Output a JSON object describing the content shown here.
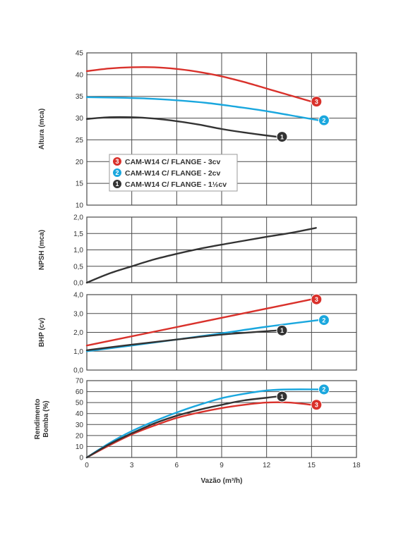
{
  "colors": {
    "series_3": "#d9312b",
    "series_2": "#1aa7de",
    "series_1": "#333333",
    "grid": "#4a4a4a",
    "panel_border": "#4a4a4a"
  },
  "chart_data": [
    {
      "type": "line",
      "ylabel": "Altura (mca)",
      "ylim": [
        10,
        45
      ],
      "yticks": [
        "10",
        "15",
        "20",
        "25",
        "30",
        "35",
        "40",
        "45"
      ],
      "xlim": [
        0,
        18
      ],
      "grid": true,
      "legend": {
        "placement": "center-left",
        "entries": [
          {
            "badge": "3",
            "label": "CAM-W14 C/ FLANGE - 3cv",
            "color_key": "series_3"
          },
          {
            "badge": "2",
            "label": "CAM-W14 C/ FLANGE - 2cv",
            "color_key": "series_2"
          },
          {
            "badge": "1",
            "label": "CAM-W14 C/ FLANGE - 1½cv",
            "color_key": "series_1"
          }
        ]
      },
      "series": [
        {
          "badge": "3",
          "color_key": "series_3",
          "x": [
            0,
            1.5,
            3,
            4.5,
            6,
            7.5,
            9,
            10.5,
            12,
            13.5,
            15
          ],
          "y": [
            40.8,
            41.4,
            41.7,
            41.7,
            41.3,
            40.6,
            39.6,
            38.3,
            36.8,
            35.3,
            33.8
          ]
        },
        {
          "badge": "2",
          "color_key": "series_2",
          "x": [
            0,
            2,
            4,
            6,
            8,
            10,
            12,
            14,
            15.5
          ],
          "y": [
            34.8,
            34.7,
            34.5,
            34.1,
            33.5,
            32.6,
            31.6,
            30.4,
            29.5
          ]
        },
        {
          "badge": "1",
          "color_key": "series_1",
          "x": [
            0,
            1.5,
            3,
            4.5,
            6,
            7.5,
            9,
            10.5,
            12.7
          ],
          "y": [
            29.8,
            30.2,
            30.2,
            29.9,
            29.3,
            28.5,
            27.5,
            26.7,
            25.7
          ]
        }
      ]
    },
    {
      "type": "line",
      "ylabel": "NPSH (mca)",
      "ylim": [
        0,
        2
      ],
      "yticks": [
        "0,0",
        "0,5",
        "1,0",
        "1,5",
        "2,0"
      ],
      "xlim": [
        0,
        18
      ],
      "grid": true,
      "series": [
        {
          "color_key": "series_1",
          "x": [
            0,
            1.5,
            3,
            4.5,
            6,
            7.5,
            9,
            10.5,
            12,
            13.5,
            15.3
          ],
          "y": [
            0,
            0.28,
            0.5,
            0.71,
            0.88,
            1.03,
            1.16,
            1.28,
            1.4,
            1.51,
            1.67
          ]
        }
      ]
    },
    {
      "type": "line",
      "ylabel": "BHP (cv)",
      "ylim": [
        0,
        4
      ],
      "yticks": [
        "0,0",
        "1,0",
        "2,0",
        "3,0",
        "4,0"
      ],
      "xlim": [
        0,
        18
      ],
      "grid": true,
      "series": [
        {
          "badge": "3",
          "color_key": "series_3",
          "x": [
            0,
            15
          ],
          "y": [
            1.3,
            3.75
          ]
        },
        {
          "badge": "2",
          "color_key": "series_2",
          "x": [
            0,
            3,
            6,
            9,
            12,
            15.5
          ],
          "y": [
            1.0,
            1.3,
            1.62,
            1.95,
            2.3,
            2.65
          ]
        },
        {
          "badge": "1",
          "color_key": "series_1",
          "x": [
            0,
            3,
            6,
            9,
            12.7
          ],
          "y": [
            1.05,
            1.35,
            1.62,
            1.88,
            2.1
          ]
        }
      ]
    },
    {
      "type": "line",
      "ylabel": "Rendimento Bomba (%)",
      "ylabel_lines": [
        "Rendimento",
        "Bomba (%)"
      ],
      "ylim": [
        0,
        70
      ],
      "yticks": [
        "0",
        "10",
        "20",
        "30",
        "40",
        "50",
        "60",
        "70"
      ],
      "xlim": [
        0,
        18
      ],
      "xticks": [
        "0",
        "3",
        "6",
        "9",
        "12",
        "15",
        "18"
      ],
      "xlabel": "Vazão (m³/h)",
      "grid": true,
      "series": [
        {
          "badge": "3",
          "color_key": "series_3",
          "x": [
            0,
            1.5,
            3,
            4.5,
            6,
            7.5,
            9,
            10.5,
            12,
            13.5,
            15
          ],
          "y": [
            0,
            11,
            21,
            29,
            36,
            41,
            45,
            48,
            50,
            50,
            48
          ]
        },
        {
          "badge": "2",
          "color_key": "series_2",
          "x": [
            0,
            1.5,
            3,
            4.5,
            6,
            7.5,
            9,
            10.5,
            12,
            13.5,
            15.5
          ],
          "y": [
            0,
            13,
            24,
            33,
            41,
            48,
            54,
            58,
            61,
            62,
            62
          ]
        },
        {
          "badge": "1",
          "color_key": "series_1",
          "x": [
            0,
            1.5,
            3,
            4.5,
            6,
            7.5,
            9,
            10.5,
            12.7
          ],
          "y": [
            0,
            12,
            22,
            31,
            38,
            43.5,
            48,
            52,
            55.5
          ]
        }
      ]
    }
  ]
}
